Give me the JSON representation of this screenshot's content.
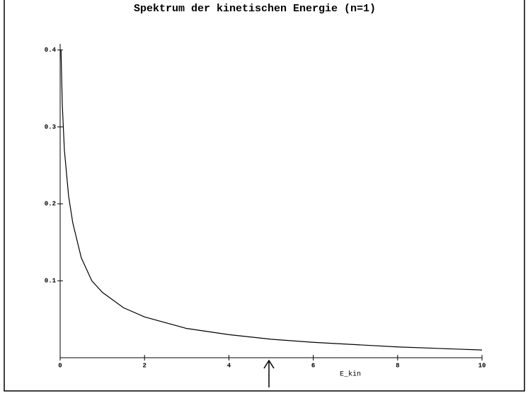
{
  "chart_data": {
    "type": "line",
    "title": "Spektrum der kinetischen Energie (n=1)",
    "x_label": "E_kin",
    "x": [
      0.02,
      0.05,
      0.1,
      0.2,
      0.3,
      0.5,
      0.75,
      1,
      1.5,
      2,
      3,
      4,
      5,
      6,
      7,
      8,
      9,
      10
    ],
    "values": [
      0.4,
      0.33,
      0.27,
      0.21,
      0.175,
      0.13,
      0.1,
      0.085,
      0.065,
      0.053,
      0.038,
      0.03,
      0.024,
      0.02,
      0.017,
      0.014,
      0.012,
      0.01
    ],
    "color": "#000000",
    "xlim": [
      0,
      10
    ],
    "xticks": [
      0,
      2,
      4,
      6,
      8,
      10
    ],
    "ylim": [
      0,
      0.408
    ],
    "yticks": [
      0.1,
      0.2,
      0.3,
      0.4
    ]
  }
}
